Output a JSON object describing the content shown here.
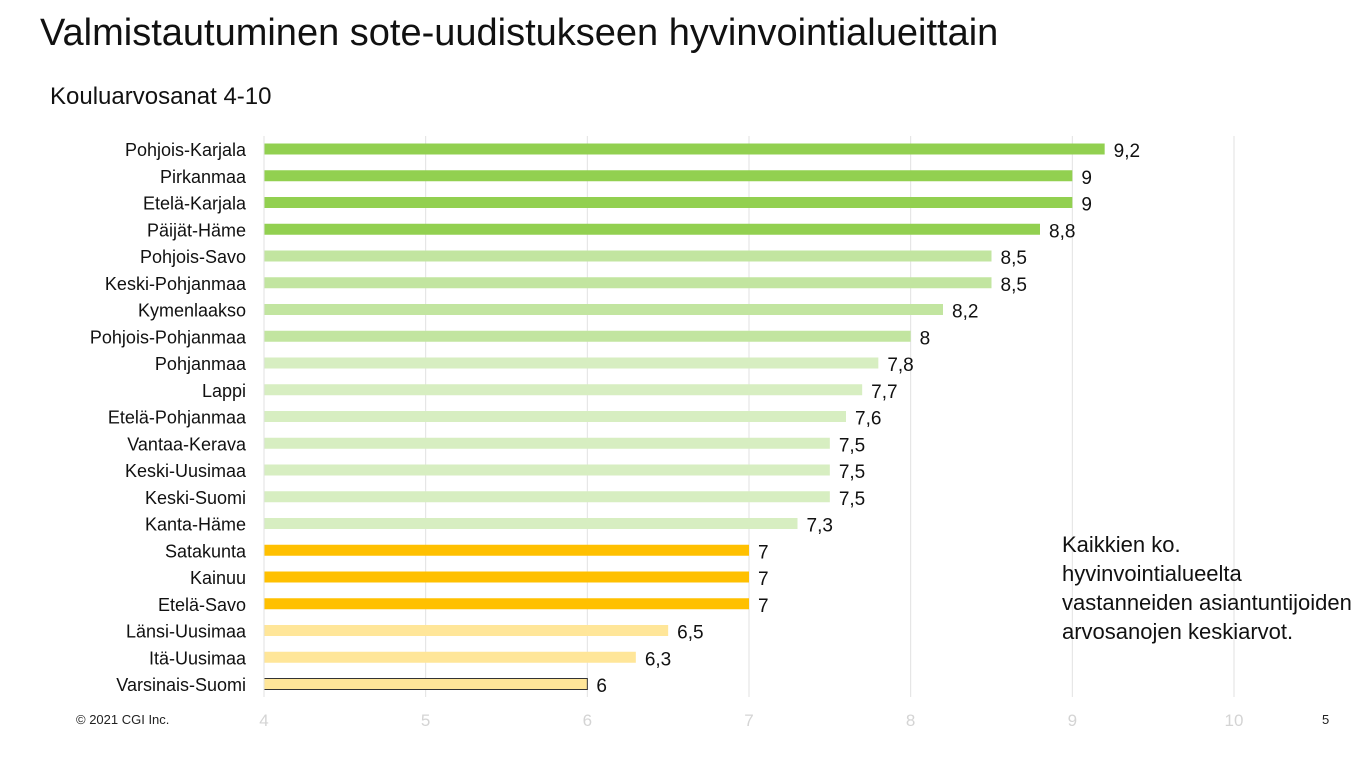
{
  "header": {
    "title": "Valmistautuminen sote-uudistukseen hyvinvointialueittain",
    "subtitle": "Kouluarvosanat 4-10"
  },
  "note": {
    "text": "Kaikkien ko. hyvinvointialueelta vastanneiden asiantuntijoiden arvosanojen keskiarvot."
  },
  "footer": {
    "copyright": "© 2021 CGI Inc.",
    "page_number": "5"
  },
  "chart_data": {
    "type": "bar",
    "orientation": "horizontal",
    "title": "",
    "xlabel": "",
    "ylabel": "",
    "xlim": [
      4,
      10
    ],
    "x_ticks": [
      "4",
      "5",
      "6",
      "7",
      "8",
      "9",
      "10"
    ],
    "grid": true,
    "categories": [
      "Pohjois-Karjala",
      "Pirkanmaa",
      "Etelä-Karjala",
      "Päijät-Häme",
      "Pohjois-Savo",
      "Keski-Pohjanmaa",
      "Kymenlaakso",
      "Pohjois-Pohjanmaa",
      "Pohjanmaa",
      "Lappi",
      "Etelä-Pohjanmaa",
      "Vantaa-Kerava",
      "Keski-Uusimaa",
      "Keski-Suomi",
      "Kanta-Häme",
      "Satakunta",
      "Kainuu",
      "Etelä-Savo",
      "Länsi-Uusimaa",
      "Itä-Uusimaa",
      "Varsinais-Suomi"
    ],
    "values": [
      9.2,
      9,
      9,
      8.8,
      8.5,
      8.5,
      8.2,
      8,
      7.8,
      7.7,
      7.6,
      7.5,
      7.5,
      7.5,
      7.3,
      7,
      7,
      7,
      6.5,
      6.3,
      6
    ],
    "value_labels": [
      "9,2",
      "9",
      "9",
      "8,8",
      "8,5",
      "8,5",
      "8,2",
      "8",
      "7,8",
      "7,7",
      "7,6",
      "7,5",
      "7,5",
      "7,5",
      "7,3",
      "7",
      "7",
      "7",
      "6,5",
      "6,3",
      "6"
    ],
    "colors": [
      "#92d050",
      "#92d050",
      "#92d050",
      "#92d050",
      "#c2e5a0",
      "#c2e5a0",
      "#c2e5a0",
      "#c2e5a0",
      "#d7eec1",
      "#d7eec1",
      "#d7eec1",
      "#d7eec1",
      "#d7eec1",
      "#d7eec1",
      "#d7eec1",
      "#ffc000",
      "#ffc000",
      "#ffc000",
      "#ffe699",
      "#ffe699",
      "#ffe699"
    ],
    "outlined": [
      false,
      false,
      false,
      false,
      false,
      false,
      false,
      false,
      false,
      false,
      false,
      false,
      false,
      false,
      false,
      false,
      false,
      false,
      false,
      false,
      true
    ]
  }
}
